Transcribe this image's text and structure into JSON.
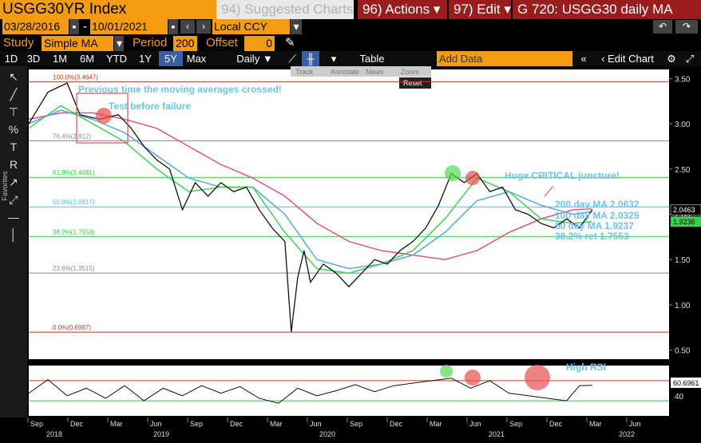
{
  "header": {
    "ticker": "USGG30YR Index",
    "suggested": "94) Suggested Charts",
    "actions": "96) Actions",
    "edit": "97) Edit",
    "title": "G 720: USGG30 daily MA"
  },
  "controls": {
    "start_date": "03/28/2016",
    "dash": "-",
    "end_date": "10/01/2021",
    "currency": "Local CCY",
    "study_label": "Study",
    "study_value": "Simple MA",
    "period_label": "Period",
    "period_value": "200",
    "offset_label": "Offset",
    "offset_value": "0"
  },
  "toolbar": {
    "ranges": [
      "1D",
      "3D",
      "1M",
      "6M",
      "YTD",
      "1Y",
      "5Y",
      "Max"
    ],
    "selected_range": "5Y",
    "frequency": "Daily",
    "table": "Table",
    "add_data": "Add Data",
    "edit_chart": "Edit Chart",
    "sub_items": [
      "Track",
      "Annotate",
      "News",
      "Zoom"
    ],
    "reset": "Reset",
    "favorites": "Favorites"
  },
  "chart_data": {
    "type": "line",
    "ylim": [
      0.4,
      3.6
    ],
    "y_ticks": [
      0.5,
      1.0,
      1.5,
      2.0,
      2.5,
      3.0,
      3.5
    ],
    "y_tick_labels": [
      "0.50",
      "1.00",
      "1.50",
      "2.00",
      "2.50",
      "3.00",
      "3.50"
    ],
    "x_month_labels": [
      "Sep",
      "Dec",
      "Mar",
      "Jun",
      "Sep",
      "Dec",
      "Mar",
      "Jun",
      "Sep",
      "Dec",
      "Mar",
      "Jun",
      "Sep",
      "Dec",
      "Mar",
      "Jun"
    ],
    "x_year_labels": [
      "2018",
      "2019",
      "2020",
      "2021",
      "2022"
    ],
    "fib_levels": [
      {
        "label": "100.0%(3.4647)",
        "value": 3.4647,
        "color": "#c0392b"
      },
      {
        "label": "76.4%(2.812)",
        "value": 2.812,
        "color": "#888888"
      },
      {
        "label": "61.8%(2.4081)",
        "value": 2.4081,
        "color": "#2ecc40"
      },
      {
        "label": "50.0%(2.0817)",
        "value": 2.0817,
        "color": "#3fc3e8"
      },
      {
        "label": "38.2%(1.7553)",
        "value": 1.7553,
        "color": "#2ecc40"
      },
      {
        "label": "23.6%(1.3515)",
        "value": 1.3515,
        "color": "#888888"
      },
      {
        "label": "0.0%(0.6987)",
        "value": 0.6987,
        "color": "#c0392b"
      }
    ],
    "series": [
      {
        "name": "200 day MA",
        "color": "#e8487a",
        "x": [
          0.0,
          0.05,
          0.1,
          0.15,
          0.2,
          0.25,
          0.3,
          0.35,
          0.4,
          0.45,
          0.5,
          0.55,
          0.6,
          0.65,
          0.7,
          0.75,
          0.8,
          0.85,
          0.88
        ],
        "y": [
          3.05,
          3.12,
          3.12,
          3.05,
          2.95,
          2.75,
          2.55,
          2.4,
          2.2,
          1.9,
          1.7,
          1.6,
          1.55,
          1.5,
          1.6,
          1.8,
          1.95,
          2.05,
          2.06
        ]
      },
      {
        "name": "100 day MA",
        "color": "#4fa3e3",
        "x": [
          0.0,
          0.05,
          0.1,
          0.15,
          0.2,
          0.25,
          0.3,
          0.35,
          0.4,
          0.45,
          0.5,
          0.55,
          0.6,
          0.65,
          0.7,
          0.75,
          0.8,
          0.85,
          0.88
        ],
        "y": [
          3.0,
          3.15,
          3.05,
          2.9,
          2.65,
          2.4,
          2.3,
          2.3,
          2.0,
          1.5,
          1.4,
          1.45,
          1.55,
          1.8,
          2.15,
          2.25,
          2.1,
          2.0,
          2.03
        ]
      },
      {
        "name": "50 day MA",
        "color": "#3ad14a",
        "x": [
          0.0,
          0.05,
          0.1,
          0.15,
          0.2,
          0.25,
          0.3,
          0.35,
          0.4,
          0.45,
          0.5,
          0.55,
          0.6,
          0.65,
          0.7,
          0.75,
          0.8,
          0.85,
          0.88
        ],
        "y": [
          2.95,
          3.2,
          3.0,
          2.8,
          2.5,
          2.25,
          2.3,
          2.3,
          1.8,
          1.4,
          1.35,
          1.45,
          1.6,
          1.95,
          2.4,
          2.25,
          1.95,
          1.9,
          1.92
        ]
      },
      {
        "name": "USGG30YR",
        "color": "#ffffff",
        "x": [
          0.0,
          0.03,
          0.06,
          0.08,
          0.11,
          0.14,
          0.16,
          0.18,
          0.2,
          0.22,
          0.24,
          0.26,
          0.28,
          0.3,
          0.32,
          0.34,
          0.36,
          0.38,
          0.4,
          0.41,
          0.42,
          0.43,
          0.44,
          0.46,
          0.48,
          0.5,
          0.52,
          0.54,
          0.56,
          0.58,
          0.6,
          0.62,
          0.64,
          0.66,
          0.68,
          0.7,
          0.72,
          0.74,
          0.76,
          0.78,
          0.8,
          0.82,
          0.84,
          0.86,
          0.88
        ],
        "y": [
          3.0,
          3.35,
          3.45,
          3.1,
          3.05,
          3.1,
          2.95,
          2.75,
          2.6,
          2.5,
          2.05,
          2.35,
          2.2,
          2.35,
          2.25,
          2.3,
          2.05,
          1.85,
          1.7,
          0.7,
          1.3,
          1.6,
          1.25,
          1.45,
          1.35,
          1.2,
          1.35,
          1.5,
          1.45,
          1.6,
          1.7,
          1.85,
          2.1,
          2.45,
          2.35,
          2.45,
          2.25,
          2.3,
          2.05,
          2.0,
          1.9,
          1.85,
          1.95,
          1.85,
          2.05
        ]
      }
    ],
    "rsi": {
      "ylim": [
        0,
        100
      ],
      "upper": 70,
      "lower": 30,
      "tick_label": "40",
      "last_value": "60.6961",
      "x": [
        0.0,
        0.03,
        0.06,
        0.09,
        0.12,
        0.15,
        0.18,
        0.21,
        0.24,
        0.27,
        0.3,
        0.33,
        0.36,
        0.39,
        0.42,
        0.45,
        0.48,
        0.51,
        0.54,
        0.57,
        0.6,
        0.63,
        0.66,
        0.69,
        0.72,
        0.75,
        0.78,
        0.81,
        0.84,
        0.86,
        0.88
      ],
      "y": [
        45,
        72,
        40,
        55,
        35,
        60,
        30,
        55,
        40,
        60,
        45,
        58,
        35,
        25,
        55,
        40,
        50,
        62,
        48,
        60,
        65,
        70,
        75,
        55,
        70,
        45,
        40,
        35,
        30,
        60,
        61
      ]
    },
    "annotations": {
      "prev_cross": "Previous time the moving averages crossed!",
      "test_fail": "Test before failure",
      "critical": "Huge CRITICAL juncture!",
      "ma200": "200 day MA 2.0632",
      "ma100": "100 day MA 2.0325",
      "ma50": "50 day MA 1.9237",
      "ret": "38.2% ret 1.7553",
      "high_rsi": "High RSI",
      "last_price": "2.0463",
      "last_ma": "1.9236"
    }
  }
}
